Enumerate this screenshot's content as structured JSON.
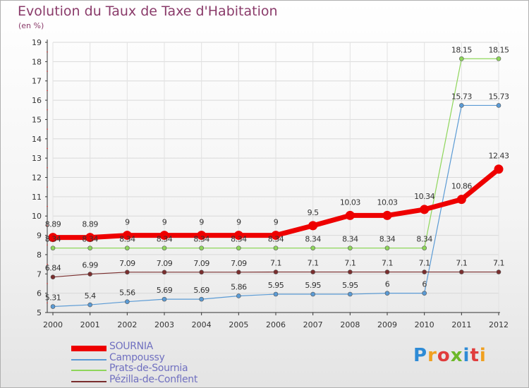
{
  "chart_data": {
    "type": "line",
    "title": "Evolution du Taux de Taxe d'Habitation",
    "ylabel": "(en %)",
    "x": [
      "2000",
      "2001",
      "2002",
      "2003",
      "2004",
      "2005",
      "2006",
      "2007",
      "2008",
      "2009",
      "2010",
      "2011",
      "2012"
    ],
    "ylim": [
      5,
      19
    ],
    "yticks": [
      5,
      6,
      7,
      8,
      9,
      10,
      11,
      12,
      13,
      14,
      15,
      16,
      17,
      18,
      19
    ],
    "grid": true,
    "legend_position": "bottom-left",
    "series": [
      {
        "name": "SOURNIA",
        "color": "#ee0000",
        "values": [
          8.89,
          8.89,
          9,
          9,
          9,
          9,
          9,
          9.5,
          10.03,
          10.03,
          10.34,
          10.86,
          12.43
        ],
        "labels": [
          "8.89",
          "8.89",
          "9",
          "9",
          "9",
          "9",
          "9",
          "9.5",
          "10.03",
          "10.03",
          "10.34",
          "10.86",
          "12.43"
        ]
      },
      {
        "name": "Campoussy",
        "color": "#5b9bd5",
        "values": [
          5.31,
          5.4,
          5.56,
          5.69,
          5.69,
          5.86,
          5.95,
          5.95,
          5.95,
          6,
          6,
          15.73,
          15.73
        ],
        "labels": [
          "5.31",
          "5.4",
          "5.56",
          "5.69",
          "5.69",
          "5.86",
          "5.95",
          "5.95",
          "5.95",
          "6",
          "6",
          "15.73",
          "15.73"
        ]
      },
      {
        "name": "Prats-de-Sournia",
        "color": "#8ed65a",
        "values": [
          8.34,
          8.34,
          8.34,
          8.34,
          8.34,
          8.34,
          8.34,
          8.34,
          8.34,
          8.34,
          8.34,
          18.15,
          18.15
        ],
        "labels": [
          "8.34",
          "8.34",
          "8.34",
          "8.34",
          "8.34",
          "8.34",
          "8.34",
          "8.34",
          "8.34",
          "8.34",
          "8.34",
          "18.15",
          "18.15"
        ]
      },
      {
        "name": "Pézilla-de-Conflent",
        "color": "#7a2e2e",
        "values": [
          6.84,
          6.99,
          7.09,
          7.09,
          7.09,
          7.09,
          7.1,
          7.1,
          7.1,
          7.1,
          7.1,
          7.1,
          7.1
        ],
        "labels": [
          "6.84",
          "6.99",
          "7.09",
          "7.09",
          "7.09",
          "7.09",
          "7.1",
          "7.1",
          "7.1",
          "7.1",
          "7.1",
          "7.1",
          "7.1"
        ]
      }
    ]
  },
  "brand": {
    "logo_text": "Proxiti",
    "logo_letters": [
      "P",
      "r",
      "o",
      "x",
      "i",
      "t",
      "i"
    ]
  }
}
